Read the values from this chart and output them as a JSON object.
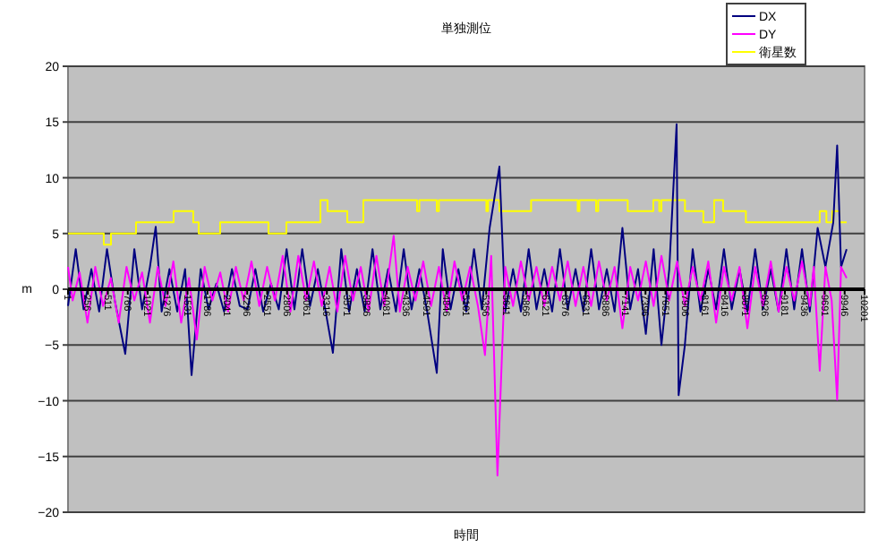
{
  "chart_data": {
    "type": "line",
    "title": "単独測位",
    "xlabel": "時間",
    "ylabel": "m",
    "xlim": [
      1,
      10201
    ],
    "ylim": [
      -20,
      20
    ],
    "xticks": [
      1,
      256,
      511,
      766,
      1021,
      1276,
      1531,
      1786,
      2041,
      2296,
      2551,
      2806,
      3061,
      3316,
      3571,
      3826,
      4081,
      4336,
      4591,
      4846,
      5101,
      5356,
      5611,
      5866,
      6121,
      6376,
      6631,
      6886,
      7141,
      7396,
      7651,
      7906,
      8161,
      8416,
      8671,
      8926,
      9181,
      9436,
      9691,
      9946,
      10201
    ],
    "yticks": [
      -20,
      -15,
      -10,
      -5,
      0,
      5,
      10,
      15,
      20
    ],
    "grid": "y",
    "legend": "top right",
    "marker": "none",
    "line_style": "solid",
    "series": [
      {
        "name": "DX",
        "color": "#000080",
        "x": [
          1,
          100,
          200,
          300,
          400,
          500,
          600,
          734,
          850,
          950,
          1050,
          1124,
          1200,
          1300,
          1400,
          1500,
          1583,
          1700,
          1800,
          1900,
          2000,
          2100,
          2200,
          2300,
          2400,
          2500,
          2600,
          2700,
          2800,
          2900,
          3000,
          3100,
          3200,
          3300,
          3393,
          3500,
          3600,
          3700,
          3800,
          3900,
          4000,
          4100,
          4200,
          4300,
          4400,
          4500,
          4600,
          4723,
          4800,
          4900,
          5000,
          5100,
          5200,
          5300,
          5400,
          5525,
          5600,
          5700,
          5800,
          5900,
          6000,
          6100,
          6200,
          6300,
          6400,
          6500,
          6600,
          6700,
          6800,
          6900,
          7000,
          7100,
          7200,
          7300,
          7400,
          7500,
          7600,
          7700,
          7794,
          7820,
          7900,
          8000,
          8100,
          8200,
          8300,
          8400,
          8500,
          8600,
          8700,
          8800,
          8900,
          9000,
          9100,
          9200,
          9300,
          9400,
          9500,
          9600,
          9700,
          9800,
          9850,
          9900,
          9971
        ],
        "values": [
          -1.5,
          3.6,
          -1.8,
          1.8,
          -2,
          3.6,
          -1,
          -5.8,
          3.6,
          -1.8,
          2,
          5.6,
          -2,
          1.8,
          -2,
          1.8,
          -7.7,
          1.8,
          -1.8,
          0.5,
          -2,
          1.8,
          -1.5,
          -1.8,
          1.8,
          -2,
          0.5,
          -1.8,
          3.6,
          -1.8,
          3.6,
          -1.5,
          1.8,
          -2,
          -5.7,
          3.6,
          -2,
          1.8,
          -2,
          3.6,
          -1.8,
          1.8,
          -2,
          3.6,
          -1.8,
          1.8,
          -2,
          -7.5,
          3.6,
          -1.8,
          1.8,
          -2,
          3.6,
          -1.8,
          5.5,
          11,
          -2,
          1.8,
          -2,
          3.6,
          -1.8,
          1.8,
          -2,
          3.6,
          -1.8,
          1.8,
          -2,
          3.6,
          -1.8,
          1.8,
          -2,
          5.5,
          -1.8,
          1.8,
          -4,
          3.6,
          -5,
          1.8,
          14.8,
          -9.5,
          -5,
          3.6,
          -2,
          1.8,
          -1.8,
          3.6,
          -1.8,
          1.8,
          -2,
          3.6,
          -1.8,
          1.8,
          -2,
          3.6,
          -1.8,
          3.6,
          -2,
          5.5,
          2,
          6,
          12.9,
          2,
          3.6
        ]
      },
      {
        "name": "DY",
        "color": "#ff00ff",
        "x": [
          1,
          60,
          150,
          250,
          350,
          450,
          550,
          650,
          750,
          850,
          950,
          1050,
          1150,
          1250,
          1350,
          1450,
          1550,
          1650,
          1750,
          1850,
          1950,
          2050,
          2150,
          2250,
          2350,
          2450,
          2550,
          2650,
          2750,
          2850,
          2950,
          3050,
          3150,
          3250,
          3350,
          3450,
          3550,
          3650,
          3750,
          3850,
          3950,
          4050,
          4171,
          4250,
          4350,
          4450,
          4550,
          4650,
          4750,
          4850,
          4950,
          5050,
          5150,
          5250,
          5340,
          5420,
          5500,
          5600,
          5700,
          5800,
          5900,
          6000,
          6100,
          6200,
          6300,
          6400,
          6500,
          6600,
          6700,
          6800,
          6900,
          7000,
          7100,
          7200,
          7300,
          7400,
          7500,
          7600,
          7700,
          7800,
          7900,
          8000,
          8100,
          8200,
          8300,
          8400,
          8500,
          8600,
          8700,
          8800,
          8900,
          9000,
          9100,
          9200,
          9300,
          9400,
          9500,
          9550,
          9627,
          9700,
          9780,
          9850,
          9900,
          9971
        ],
        "values": [
          2,
          -1,
          1.5,
          -3,
          2,
          -1.5,
          1,
          -3,
          2,
          -1,
          1.5,
          -3,
          2,
          -1.5,
          2.5,
          -3,
          1,
          -4.5,
          2,
          -1,
          1.5,
          -2,
          2,
          -1,
          2.5,
          -1.5,
          2,
          -1,
          3,
          -2,
          3,
          -1,
          2.5,
          -1.5,
          2,
          -2,
          3,
          -1,
          2,
          -2,
          3,
          -1.5,
          4.8,
          -2,
          2,
          -1,
          2.5,
          -1.5,
          2,
          -2,
          2.5,
          -1,
          2,
          -1.5,
          -5.9,
          3,
          -16.7,
          2,
          -1.5,
          2.5,
          -1,
          2,
          -1.5,
          2,
          -1,
          2.5,
          -1.5,
          2,
          -1.5,
          2.5,
          -1,
          2,
          -3.5,
          2,
          -1,
          2.5,
          -1.5,
          3,
          -1,
          2.5,
          -1.5,
          2,
          -1,
          2.5,
          -3,
          2,
          -1,
          2,
          -3.5,
          2,
          -1.5,
          2.5,
          -2,
          2,
          -1,
          2.5,
          -1.5,
          2,
          -7.3,
          2,
          -1,
          -9.9,
          2,
          1
        ]
      },
      {
        "name": "衛星数",
        "color": "#ffff00",
        "type": "step",
        "x": [
          1,
          459,
          551,
          872,
          1353,
          1605,
          1674,
          1949,
          2568,
          2797,
          3233,
          3324,
          3577,
          3783,
          4470,
          4500,
          4723,
          4750,
          5358,
          5380,
          5525,
          5931,
          6527,
          6550,
          6763,
          6790,
          7168,
          7496,
          7572,
          7600,
          7901,
          8137,
          8275,
          8390,
          8681,
          9627,
          9712,
          9788,
          9880,
          9971
        ],
        "values": [
          5,
          4,
          5,
          6,
          7,
          6,
          5,
          6,
          5,
          6,
          8,
          7,
          6,
          8,
          7,
          8,
          7,
          8,
          7,
          8,
          7,
          8,
          7,
          8,
          7,
          8,
          7,
          8,
          7,
          8,
          7,
          6,
          8,
          7,
          6,
          7,
          6,
          7,
          6,
          6
        ]
      }
    ]
  }
}
